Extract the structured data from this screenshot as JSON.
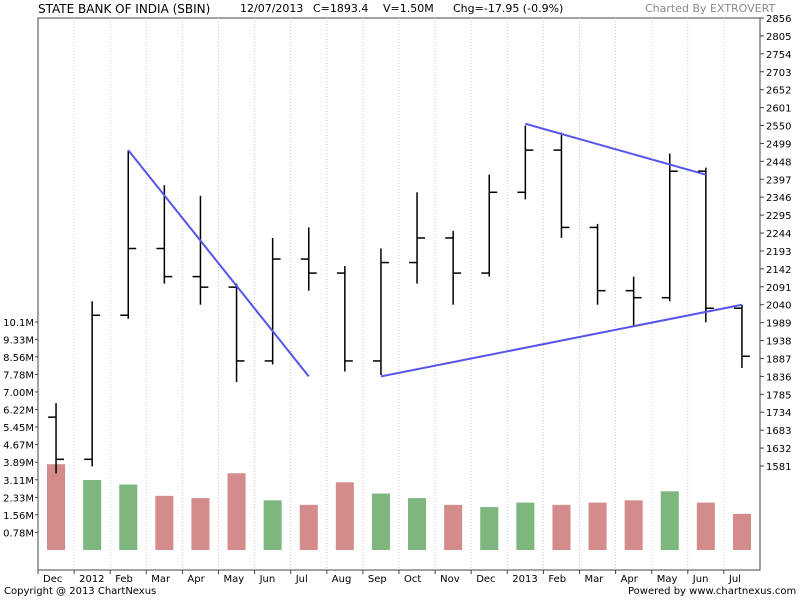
{
  "header": {
    "title": "STATE BANK OF INDIA (SBIN)",
    "date": "12/07/2013",
    "close": "C=1893.4",
    "volume": "V=1.50M",
    "change": "Chg=-17.95 (-0.9%)",
    "charted_by": "Charted By EXTROVERT"
  },
  "footer": {
    "copyright": "Copyright @ 2013 ChartNexus",
    "powered_by": "Powered by www.chartnexus.com"
  },
  "colors": {
    "price": "#000000",
    "volume_up": "#66aa66",
    "volume_down": "#cc7777",
    "trendline": "#5555ee",
    "grid": "#c8c8c8"
  },
  "chart_data": {
    "type": "bar",
    "price_axis": {
      "side": "right",
      "ticks": [
        2856,
        2805,
        2754,
        2703,
        2652,
        2601,
        2550,
        2499,
        2448,
        2397,
        2346,
        2295,
        2244,
        2193,
        2142,
        2091,
        2040,
        1989,
        1938,
        1887,
        1836,
        1785,
        1734,
        1683,
        1632,
        1581
      ]
    },
    "volume_axis": {
      "side": "left",
      "ticks": [
        "10.1M",
        "9.33M",
        "8.56M",
        "7.78M",
        "7.00M",
        "6.22M",
        "5.45M",
        "4.67M",
        "3.89M",
        "3.11M",
        "2.33M",
        "1.56M",
        "0.78M"
      ]
    },
    "x_axis": {
      "ticks": [
        "Dec",
        "2012",
        "Feb",
        "Mar",
        "Apr",
        "May",
        "Jun",
        "Jul",
        "Aug",
        "Sep",
        "Oct",
        "Nov",
        "Dec",
        "2013",
        "Feb",
        "Mar",
        "Apr",
        "May",
        "Jun",
        "Jul"
      ]
    },
    "price_series": [
      {
        "month": "Dec",
        "open": 1720,
        "high": 1760,
        "low": 1560,
        "close": 1600
      },
      {
        "month": "2012",
        "open": 1600,
        "high": 2050,
        "low": 1580,
        "close": 2010
      },
      {
        "month": "Feb",
        "open": 2010,
        "high": 2480,
        "low": 2000,
        "close": 2200
      },
      {
        "month": "Mar",
        "open": 2200,
        "high": 2380,
        "low": 2100,
        "close": 2120
      },
      {
        "month": "Apr",
        "open": 2120,
        "high": 2350,
        "low": 2040,
        "close": 2090
      },
      {
        "month": "May",
        "open": 2090,
        "high": 2100,
        "low": 1820,
        "close": 1880
      },
      {
        "month": "Jun",
        "open": 1880,
        "high": 2230,
        "low": 1870,
        "close": 2170
      },
      {
        "month": "Jul",
        "open": 2170,
        "high": 2260,
        "low": 2080,
        "close": 2130
      },
      {
        "month": "Aug",
        "open": 2130,
        "high": 2150,
        "low": 1850,
        "close": 1880
      },
      {
        "month": "Sep",
        "open": 1880,
        "high": 2200,
        "low": 1840,
        "close": 2160
      },
      {
        "month": "Oct",
        "open": 2160,
        "high": 2360,
        "low": 2100,
        "close": 2230
      },
      {
        "month": "Nov",
        "open": 2230,
        "high": 2250,
        "low": 2040,
        "close": 2130
      },
      {
        "month": "Dec",
        "open": 2130,
        "high": 2410,
        "low": 2120,
        "close": 2360
      },
      {
        "month": "2013",
        "open": 2360,
        "high": 2550,
        "low": 2340,
        "close": 2480
      },
      {
        "month": "Feb",
        "open": 2480,
        "high": 2530,
        "low": 2230,
        "close": 2260
      },
      {
        "month": "Mar",
        "open": 2260,
        "high": 2270,
        "low": 2040,
        "close": 2080
      },
      {
        "month": "Apr",
        "open": 2080,
        "high": 2120,
        "low": 1980,
        "close": 2060
      },
      {
        "month": "May",
        "open": 2060,
        "high": 2470,
        "low": 2050,
        "close": 2420
      },
      {
        "month": "Jun",
        "open": 2420,
        "high": 2430,
        "low": 1990,
        "close": 2030
      },
      {
        "month": "Jul",
        "open": 2030,
        "high": 2040,
        "low": 1860,
        "close": 1893.4
      }
    ],
    "volume_series": [
      {
        "month": "Dec",
        "value": 3.8
      },
      {
        "month": "2012",
        "value": 3.1
      },
      {
        "month": "Feb",
        "value": 2.9
      },
      {
        "month": "Mar",
        "value": 2.4
      },
      {
        "month": "Apr",
        "value": 2.3
      },
      {
        "month": "May",
        "value": 3.4
      },
      {
        "month": "Jun",
        "value": 2.2
      },
      {
        "month": "Jul",
        "value": 2.0
      },
      {
        "month": "Aug",
        "value": 3.0
      },
      {
        "month": "Sep",
        "value": 2.5
      },
      {
        "month": "Oct",
        "value": 2.3
      },
      {
        "month": "Nov",
        "value": 2.0
      },
      {
        "month": "Dec",
        "value": 1.9
      },
      {
        "month": "2013",
        "value": 2.1
      },
      {
        "month": "Feb",
        "value": 2.0
      },
      {
        "month": "Mar",
        "value": 2.1
      },
      {
        "month": "Apr",
        "value": 2.2
      },
      {
        "month": "May",
        "value": 2.6
      },
      {
        "month": "Jun",
        "value": 2.1
      },
      {
        "month": "Jul",
        "value": 1.6
      }
    ],
    "trendlines": [
      {
        "from": [
          "Feb",
          2480
        ],
        "to": [
          "Jul",
          1836
        ]
      },
      {
        "from": [
          "Sep",
          1836
        ],
        "to": [
          "Jul",
          2040
        ]
      },
      {
        "from": [
          "2013",
          2555
        ],
        "to": [
          "Jun",
          2410
        ]
      }
    ],
    "grid": true,
    "legend": "none"
  }
}
